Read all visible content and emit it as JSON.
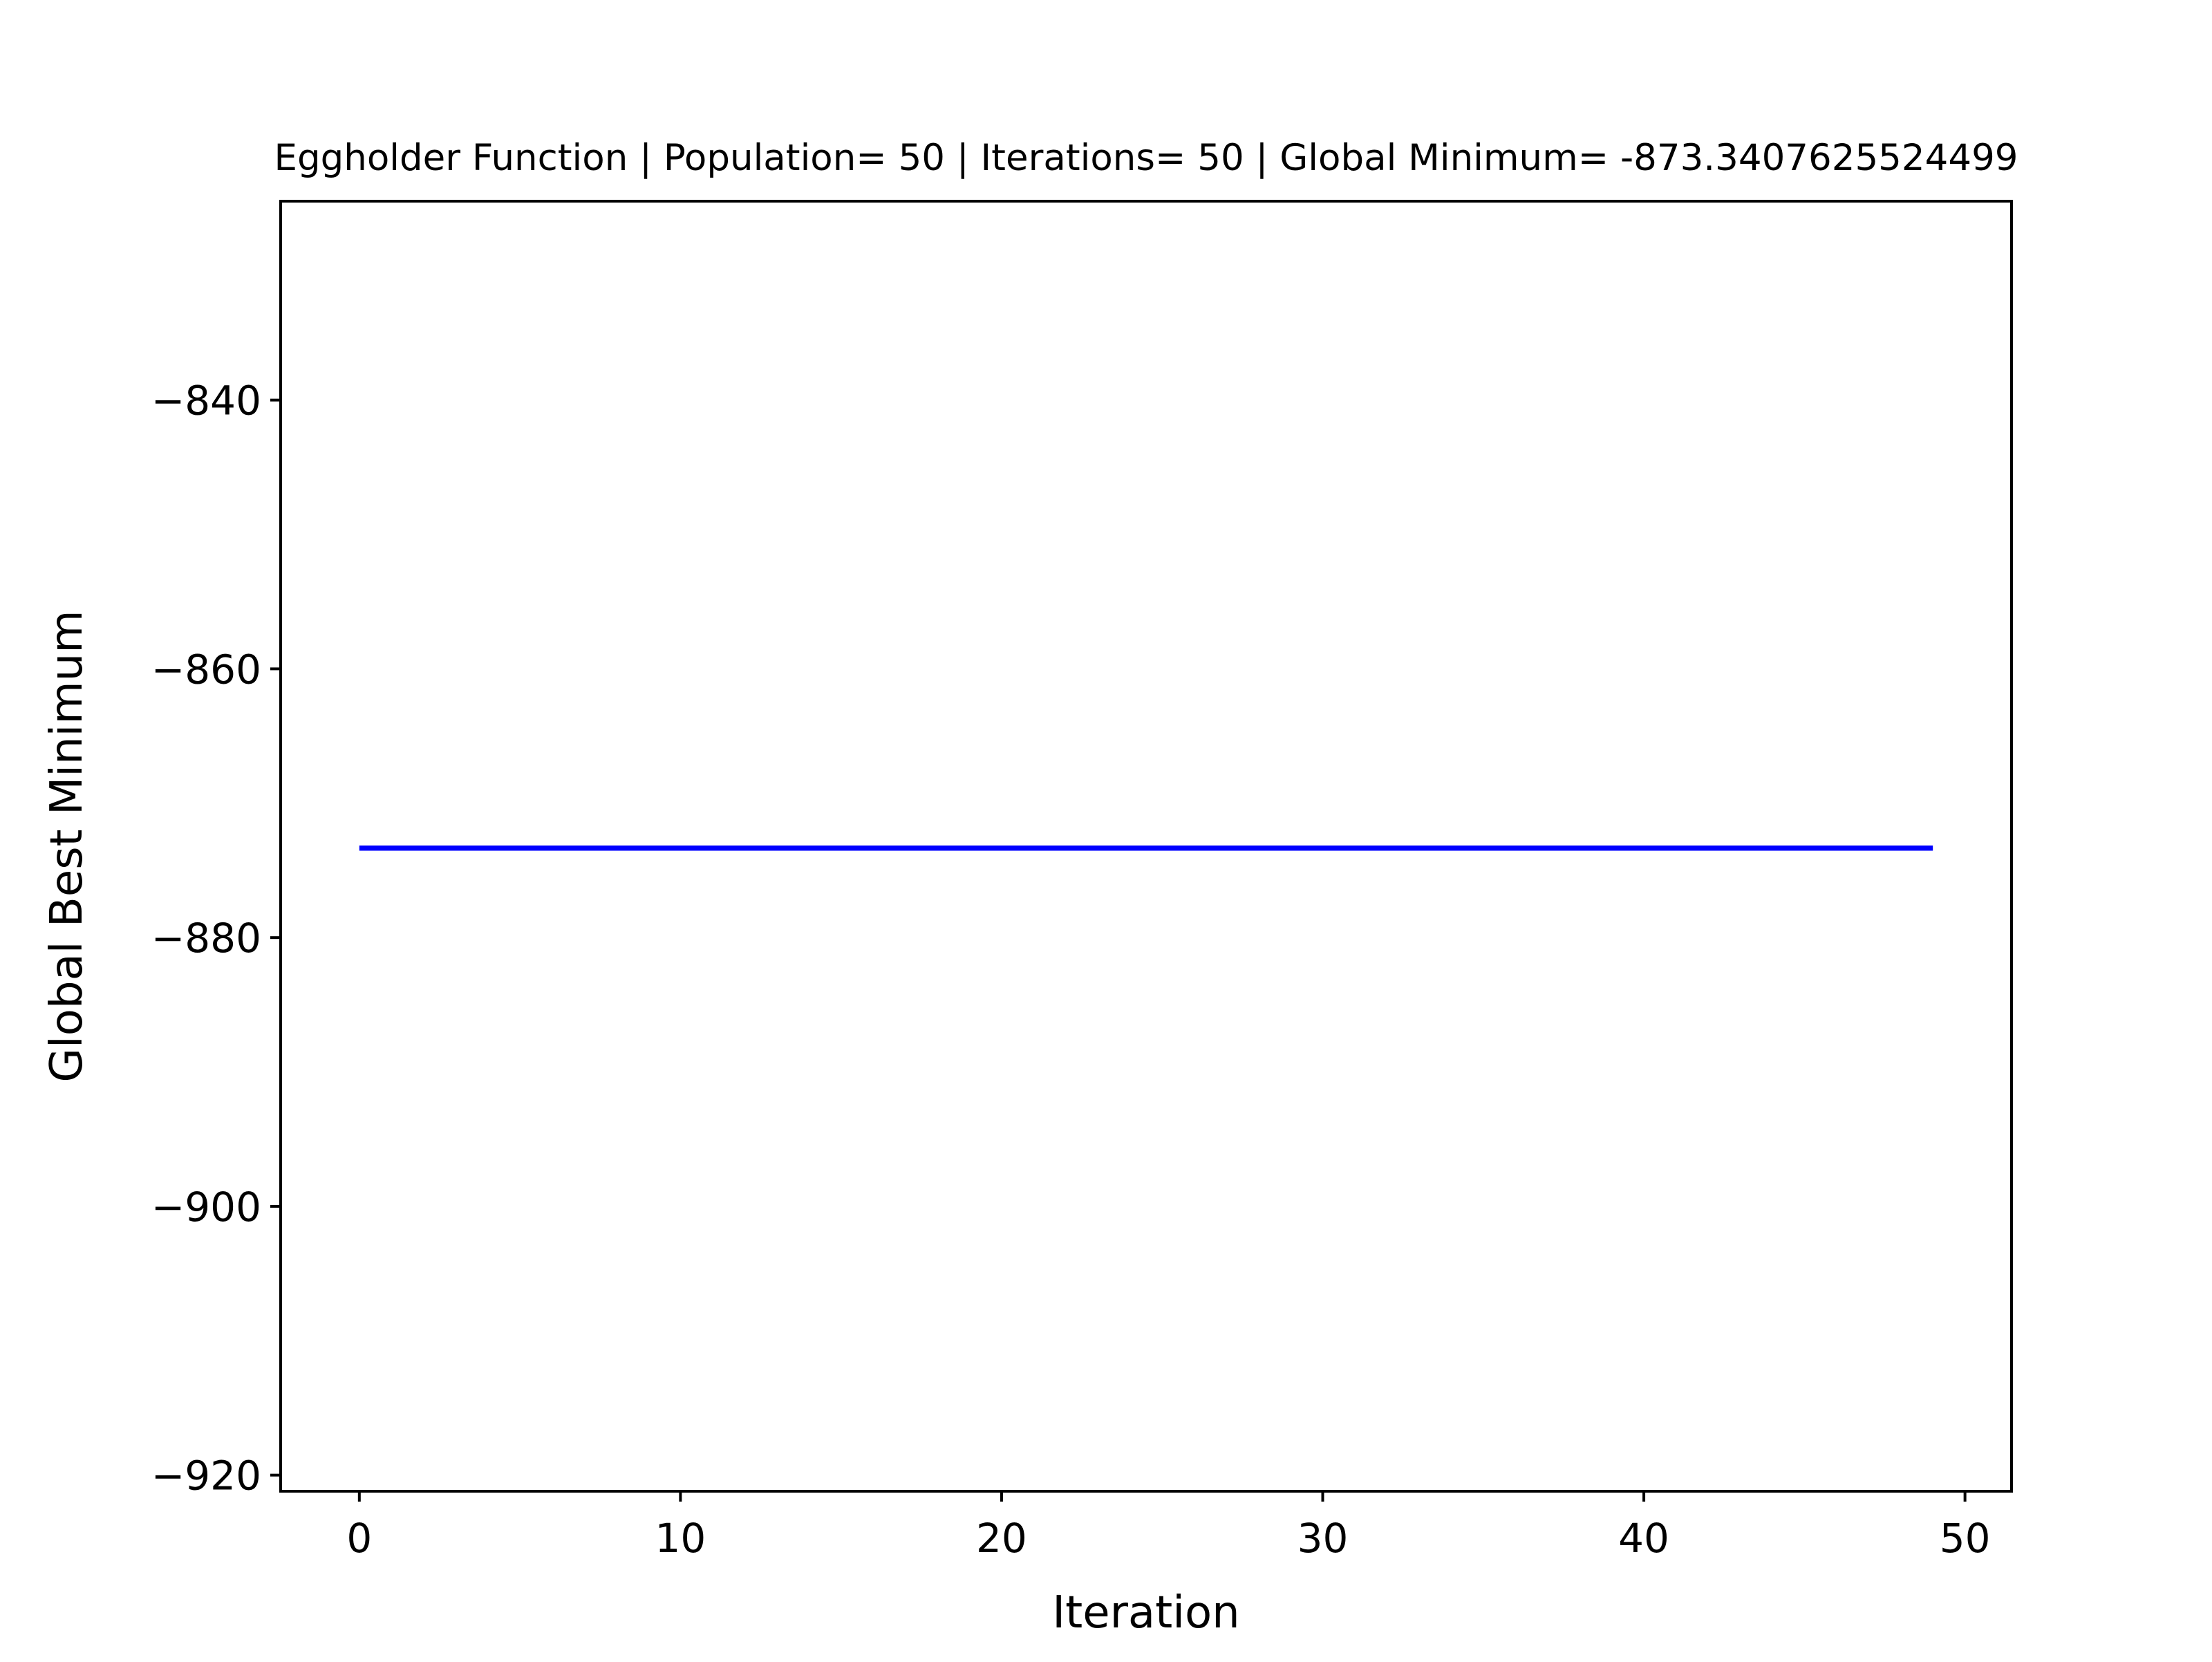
{
  "chart_data": {
    "type": "line",
    "title": "Eggholder Function | Population= 50 | Iterations= 50 | Global Minimum= -873.3407625524499",
    "xlabel": "Iteration",
    "ylabel": "Global Best Minimum",
    "xlim": [
      -2.45,
      51.45
    ],
    "ylim": [
      -921.2,
      -825.2
    ],
    "x_ticks": [
      0,
      10,
      20,
      30,
      40,
      50
    ],
    "x_tick_labels": [
      "0",
      "10",
      "20",
      "30",
      "40",
      "50"
    ],
    "y_ticks": [
      -840,
      -860,
      -880,
      -900,
      -920
    ],
    "y_tick_labels": [
      "−840",
      "−860",
      "−880",
      "−900",
      "−920"
    ],
    "grid": false,
    "series": [
      {
        "color": "#0000ff",
        "x": [
          0,
          1,
          2,
          3,
          4,
          5,
          6,
          7,
          8,
          9,
          10,
          11,
          12,
          13,
          14,
          15,
          16,
          17,
          18,
          19,
          20,
          21,
          22,
          23,
          24,
          25,
          26,
          27,
          28,
          29,
          30,
          31,
          32,
          33,
          34,
          35,
          36,
          37,
          38,
          39,
          40,
          41,
          42,
          43,
          44,
          45,
          46,
          47,
          48,
          49
        ],
        "y": [
          -873.3407625524499,
          -873.3407625524499,
          -873.3407625524499,
          -873.3407625524499,
          -873.3407625524499,
          -873.3407625524499,
          -873.3407625524499,
          -873.3407625524499,
          -873.3407625524499,
          -873.3407625524499,
          -873.3407625524499,
          -873.3407625524499,
          -873.3407625524499,
          -873.3407625524499,
          -873.3407625524499,
          -873.3407625524499,
          -873.3407625524499,
          -873.3407625524499,
          -873.3407625524499,
          -873.3407625524499,
          -873.3407625524499,
          -873.3407625524499,
          -873.3407625524499,
          -873.3407625524499,
          -873.3407625524499,
          -873.3407625524499,
          -873.3407625524499,
          -873.3407625524499,
          -873.3407625524499,
          -873.3407625524499,
          -873.3407625524499,
          -873.3407625524499,
          -873.3407625524499,
          -873.3407625524499,
          -873.3407625524499,
          -873.3407625524499,
          -873.3407625524499,
          -873.3407625524499,
          -873.3407625524499,
          -873.3407625524499,
          -873.3407625524499,
          -873.3407625524499,
          -873.3407625524499,
          -873.3407625524499,
          -873.3407625524499,
          -873.3407625524499,
          -873.3407625524499,
          -873.3407625524499,
          -873.3407625524499,
          -873.3407625524499
        ]
      }
    ]
  }
}
